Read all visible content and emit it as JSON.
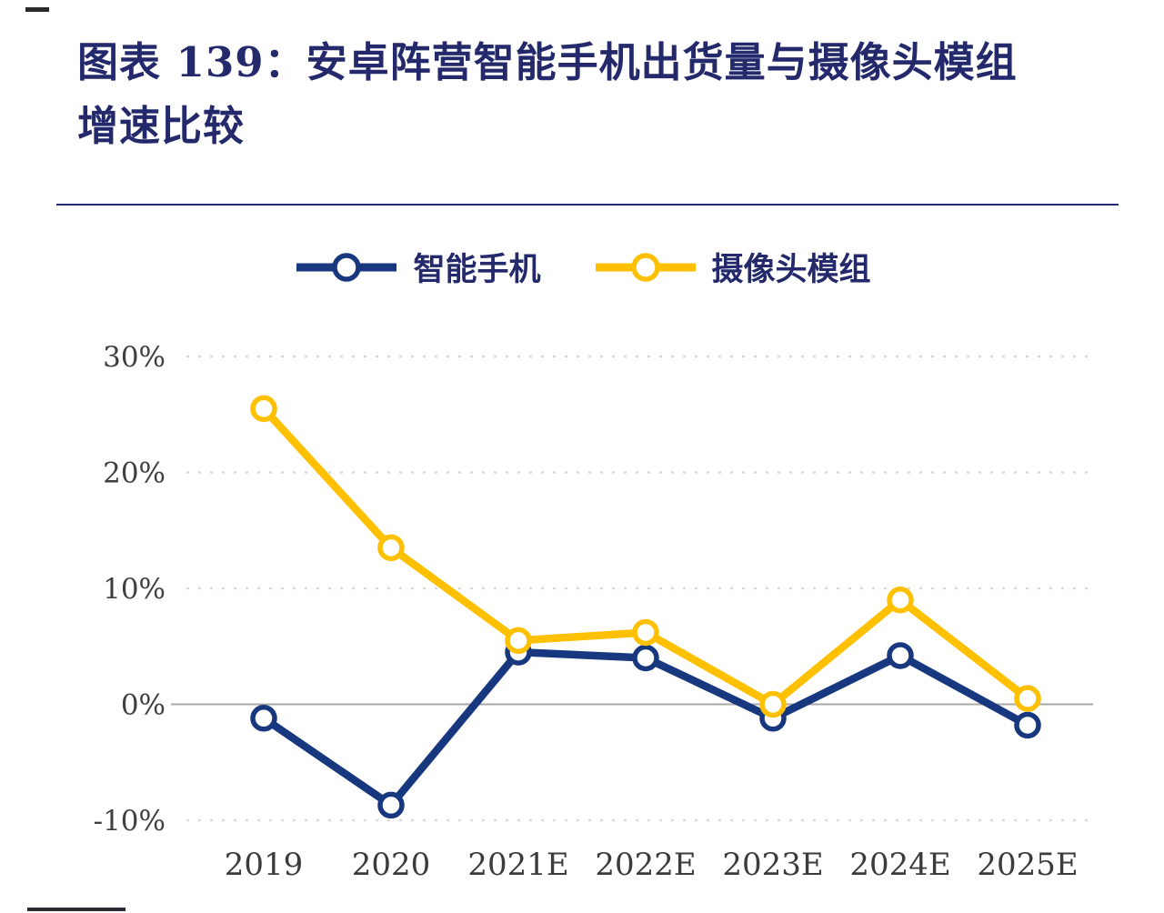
{
  "figure": {
    "title_line1": "图表 139：安卓阵营智能手机出货量与摄像头模组",
    "title_line2": "增速比较"
  },
  "legend": {
    "items": [
      {
        "label": "智能手机",
        "color": "#17377e"
      },
      {
        "label": "摄像头模组",
        "color": "#ffc000"
      }
    ]
  },
  "colors": {
    "title": "#23296b",
    "rule": "#23296b",
    "grid": "#d9d9d9",
    "zero_line": "#a8a8a8",
    "axis_text": "#3f3f3f"
  },
  "chart_data": {
    "type": "line",
    "title": "安卓阵营智能手机出货量与摄像头模组增速比较",
    "categories": [
      "2019",
      "2020",
      "2021E",
      "2022E",
      "2023E",
      "2024E",
      "2025E"
    ],
    "series": [
      {
        "name": "智能手机",
        "color": "#17377e",
        "values": [
          -1.2,
          -8.7,
          4.5,
          4.0,
          -1.2,
          4.2,
          -1.8
        ]
      },
      {
        "name": "摄像头模组",
        "color": "#ffc000",
        "values": [
          25.5,
          13.5,
          5.5,
          6.2,
          0.0,
          9.0,
          0.5
        ]
      }
    ],
    "yticks": [
      {
        "value": 30,
        "label": "30%"
      },
      {
        "value": 20,
        "label": "20%"
      },
      {
        "value": 10,
        "label": "10%"
      },
      {
        "value": 0,
        "label": "0%"
      },
      {
        "value": -10,
        "label": "-10%"
      }
    ],
    "ylim": [
      -13,
      33
    ],
    "grid": "horizontal-dashed-at-10-20-30-solid-at-0",
    "legend_position": "top-center"
  }
}
